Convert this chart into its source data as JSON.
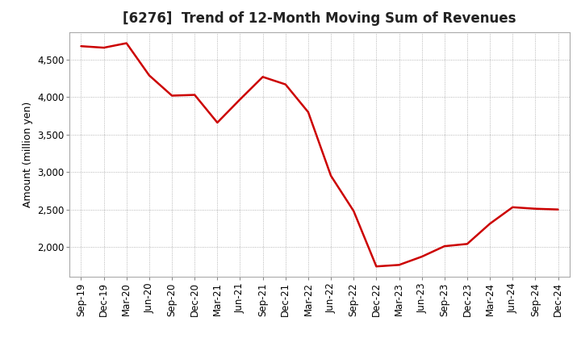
{
  "title": "[6276]  Trend of 12-Month Moving Sum of Revenues",
  "ylabel": "Amount (million yen)",
  "line_color": "#cc0000",
  "line_width": 1.8,
  "background_color": "#ffffff",
  "plot_bg_color": "#ffffff",
  "grid_color": "#999999",
  "labels": [
    "Sep-19",
    "Dec-19",
    "Mar-20",
    "Jun-20",
    "Sep-20",
    "Dec-20",
    "Mar-21",
    "Jun-21",
    "Sep-21",
    "Dec-21",
    "Mar-22",
    "Jun-22",
    "Sep-22",
    "Dec-22",
    "Mar-23",
    "Jun-23",
    "Sep-23",
    "Dec-23",
    "Mar-24",
    "Jun-24",
    "Sep-24",
    "Dec-24"
  ],
  "values": [
    4680,
    4660,
    4720,
    4290,
    4020,
    4030,
    3660,
    3970,
    4270,
    4170,
    3800,
    2950,
    2480,
    1740,
    1760,
    1870,
    2010,
    2040,
    2310,
    2530,
    2510,
    2500
  ],
  "ylim_min": 1600,
  "ylim_max": 4870,
  "yticks": [
    2000,
    2500,
    3000,
    3500,
    4000,
    4500
  ],
  "title_fontsize": 12,
  "ylabel_fontsize": 9,
  "tick_fontsize": 8.5
}
